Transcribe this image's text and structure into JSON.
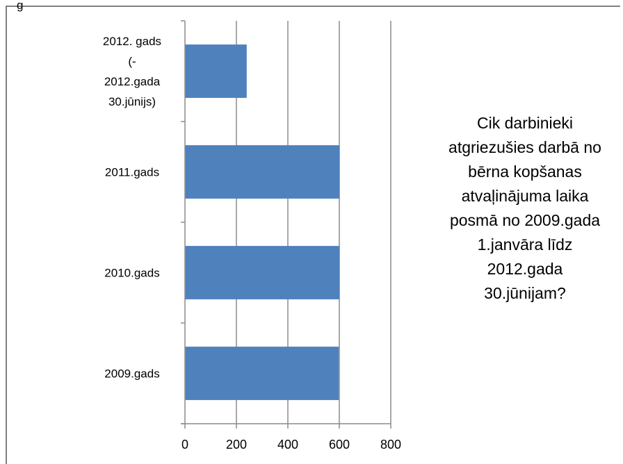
{
  "top_fragment": "g",
  "chart_data": {
    "type": "bar",
    "orientation": "horizontal",
    "title": "Cik darbinieki atgriezušies darbā no bērna kopšanas atvaļinājuma laika posmā no 2009.gada 1.janvāra līdz 2012.gada 30.jūnijam?",
    "title_lines": [
      "Cik darbinieki",
      "atgriezušies darbā no",
      "bērna kopšanas",
      "atvaļinājuma laika",
      "posmā no 2009.gada",
      "1.janvāra līdz",
      "2012.gada",
      "30.jūnijam?"
    ],
    "categories": [
      "2009.gads",
      "2010.gads",
      "2011.gads",
      "2012. gads (- 2012.gada 30.jūnijs)"
    ],
    "category_label_lines": [
      [
        "2009.gads"
      ],
      [
        "2010.gads"
      ],
      [
        "2011.gads"
      ],
      [
        "2012. gads",
        "(-",
        "2012.gada",
        "30.jūnijs)"
      ]
    ],
    "values": [
      598,
      601,
      601,
      240
    ],
    "xlim": [
      0,
      800
    ],
    "x_ticks": [
      0,
      200,
      400,
      600,
      800
    ],
    "xlabel": "",
    "ylabel": "",
    "grid": true,
    "bar_color": "#4f81bd",
    "legend": "none"
  }
}
